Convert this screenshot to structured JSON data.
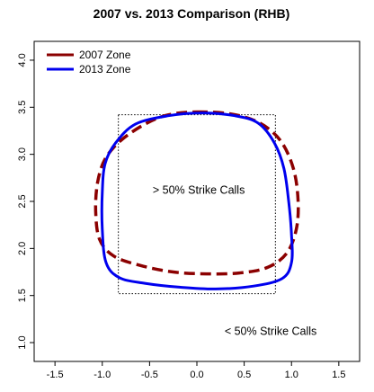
{
  "chart_data": {
    "type": "line",
    "title": "2007 vs. 2013 Comparison (RHB)",
    "xlabel": "",
    "ylabel": "",
    "xlim": [
      -1.5,
      1.5
    ],
    "ylim": [
      1.0,
      4.0
    ],
    "x_ticks": [
      "-1.5",
      "-1.0",
      "-0.5",
      "0.0",
      "0.5",
      "1.0",
      "1.5"
    ],
    "y_ticks": [
      "1.0",
      "1.5",
      "2.0",
      "2.5",
      "3.0",
      "3.5",
      "4.0"
    ],
    "grid": false,
    "legend_position": "top-left",
    "reference_box": {
      "x": [
        -0.83,
        0.83
      ],
      "y": [
        1.52,
        3.42
      ]
    },
    "series": [
      {
        "name": "2007 Zone",
        "color": "#8b0000",
        "style": "dashed",
        "points": [
          [
            0.0,
            3.45
          ],
          [
            0.35,
            3.43
          ],
          [
            0.65,
            3.34
          ],
          [
            0.88,
            3.15
          ],
          [
            1.02,
            2.85
          ],
          [
            1.07,
            2.5
          ],
          [
            1.05,
            2.2
          ],
          [
            0.95,
            1.95
          ],
          [
            0.75,
            1.8
          ],
          [
            0.45,
            1.74
          ],
          [
            0.1,
            1.73
          ],
          [
            -0.25,
            1.75
          ],
          [
            -0.6,
            1.82
          ],
          [
            -0.88,
            1.92
          ],
          [
            -1.03,
            2.1
          ],
          [
            -1.07,
            2.4
          ],
          [
            -1.05,
            2.7
          ],
          [
            -0.97,
            2.95
          ],
          [
            -0.8,
            3.15
          ],
          [
            -0.55,
            3.32
          ],
          [
            -0.3,
            3.42
          ],
          [
            0.0,
            3.45
          ]
        ]
      },
      {
        "name": "2013 Zone",
        "color": "#0000ee",
        "style": "solid",
        "points": [
          [
            0.05,
            3.44
          ],
          [
            0.4,
            3.41
          ],
          [
            0.65,
            3.33
          ],
          [
            0.82,
            3.12
          ],
          [
            0.92,
            2.85
          ],
          [
            0.97,
            2.5
          ],
          [
            1.0,
            2.15
          ],
          [
            1.0,
            1.85
          ],
          [
            0.9,
            1.68
          ],
          [
            0.6,
            1.6
          ],
          [
            0.2,
            1.57
          ],
          [
            -0.2,
            1.59
          ],
          [
            -0.55,
            1.63
          ],
          [
            -0.82,
            1.69
          ],
          [
            -0.96,
            1.85
          ],
          [
            -1.0,
            2.2
          ],
          [
            -1.0,
            2.6
          ],
          [
            -0.97,
            2.9
          ],
          [
            -0.86,
            3.12
          ],
          [
            -0.65,
            3.32
          ],
          [
            -0.3,
            3.41
          ],
          [
            0.05,
            3.44
          ]
        ]
      }
    ],
    "annotations": [
      {
        "text": "> 50% Strike Calls",
        "x": 0.02,
        "y": 2.58
      },
      {
        "text": "< 50% Strike Calls",
        "x": 0.78,
        "y": 1.08
      }
    ]
  }
}
